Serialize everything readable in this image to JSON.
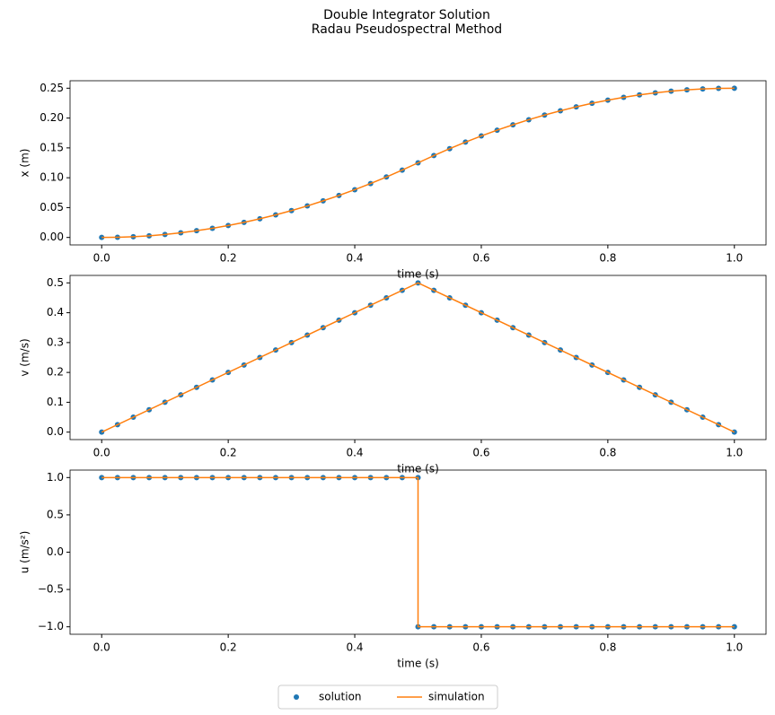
{
  "title": [
    "Double Integrator Solution",
    "Radau Pseudospectral Method"
  ],
  "legend": {
    "loc": "lower center",
    "ncol": 2
  },
  "chart_data": [
    {
      "type": "line",
      "xlabel": "time (s)",
      "ylabel": "x (m)",
      "xlim": [
        -0.05,
        1.05
      ],
      "ylim": [
        -0.0125,
        0.2625
      ],
      "xticks": [
        {
          "value": 0,
          "label": "0.0"
        },
        0.2,
        0.4,
        0.6,
        0.8,
        {
          "value": 1,
          "label": "1.0"
        }
      ],
      "yticks": [
        {
          "value": 0,
          "label": "0.00"
        },
        {
          "value": 0.05,
          "label": "0.05"
        },
        {
          "value": 0.1,
          "label": "0.10"
        },
        {
          "value": 0.15,
          "label": "0.15"
        },
        {
          "value": 0.2,
          "label": "0.20"
        },
        {
          "value": 0.25,
          "label": "0.25"
        }
      ],
      "series": [
        {
          "name": "solution",
          "color": "#1f77b4",
          "mode": "markers",
          "x": [
            0,
            0.025,
            0.05,
            0.075,
            0.1,
            0.125,
            0.15,
            0.175,
            0.2,
            0.225,
            0.25,
            0.275,
            0.3,
            0.325,
            0.35,
            0.375,
            0.4,
            0.425,
            0.45,
            0.475,
            0.5,
            0.525,
            0.55,
            0.575,
            0.6,
            0.625,
            0.65,
            0.675,
            0.7,
            0.725,
            0.75,
            0.775,
            0.8,
            0.825,
            0.85,
            0.875,
            0.9,
            0.925,
            0.95,
            0.975,
            1
          ],
          "values": [
            0,
            0.0003,
            0.0013,
            0.0028,
            0.005,
            0.0078,
            0.0113,
            0.0153,
            0.02,
            0.0253,
            0.0313,
            0.0378,
            0.045,
            0.0528,
            0.0613,
            0.0703,
            0.08,
            0.0903,
            0.1013,
            0.1128,
            0.125,
            0.1372,
            0.1487,
            0.1597,
            0.17,
            0.1797,
            0.1887,
            0.1972,
            0.205,
            0.2122,
            0.2187,
            0.2247,
            0.23,
            0.2347,
            0.2388,
            0.2422,
            0.245,
            0.2472,
            0.2487,
            0.2497,
            0.25
          ]
        },
        {
          "name": "simulation",
          "color": "#ff7f0e",
          "mode": "lines",
          "x": [
            0,
            0.025,
            0.05,
            0.075,
            0.1,
            0.125,
            0.15,
            0.175,
            0.2,
            0.225,
            0.25,
            0.275,
            0.3,
            0.325,
            0.35,
            0.375,
            0.4,
            0.425,
            0.45,
            0.475,
            0.5,
            0.525,
            0.55,
            0.575,
            0.6,
            0.625,
            0.65,
            0.675,
            0.7,
            0.725,
            0.75,
            0.775,
            0.8,
            0.825,
            0.85,
            0.875,
            0.9,
            0.925,
            0.95,
            0.975,
            1
          ],
          "values": [
            0,
            0.0003,
            0.0013,
            0.0028,
            0.005,
            0.0078,
            0.0113,
            0.0153,
            0.02,
            0.0253,
            0.0313,
            0.0378,
            0.045,
            0.0528,
            0.0613,
            0.0703,
            0.08,
            0.0903,
            0.1013,
            0.1128,
            0.125,
            0.1372,
            0.1487,
            0.1597,
            0.17,
            0.1797,
            0.1887,
            0.1972,
            0.205,
            0.2122,
            0.2187,
            0.2247,
            0.23,
            0.2347,
            0.2388,
            0.2422,
            0.245,
            0.2472,
            0.2487,
            0.2497,
            0.25
          ]
        }
      ]
    },
    {
      "type": "line",
      "xlabel": "time (s)",
      "ylabel": "v (m/s)",
      "xlim": [
        -0.05,
        1.05
      ],
      "ylim": [
        -0.025,
        0.525
      ],
      "xticks": [
        {
          "value": 0,
          "label": "0.0"
        },
        0.2,
        0.4,
        0.6,
        0.8,
        {
          "value": 1,
          "label": "1.0"
        }
      ],
      "yticks": [
        {
          "value": 0,
          "label": "0.0"
        },
        0.1,
        0.2,
        0.3,
        0.4,
        0.5
      ],
      "series": [
        {
          "color": "#1f77b4",
          "mode": "markers",
          "x": [
            0,
            0.025,
            0.05,
            0.075,
            0.1,
            0.125,
            0.15,
            0.175,
            0.2,
            0.225,
            0.25,
            0.275,
            0.3,
            0.325,
            0.35,
            0.375,
            0.4,
            0.425,
            0.45,
            0.475,
            0.5,
            0.525,
            0.55,
            0.575,
            0.6,
            0.625,
            0.65,
            0.675,
            0.7,
            0.725,
            0.75,
            0.775,
            0.8,
            0.825,
            0.85,
            0.875,
            0.9,
            0.925,
            0.95,
            0.975,
            1
          ],
          "values": [
            0,
            0.025,
            0.05,
            0.075,
            0.1,
            0.125,
            0.15,
            0.175,
            0.2,
            0.225,
            0.25,
            0.275,
            0.3,
            0.325,
            0.35,
            0.375,
            0.4,
            0.425,
            0.45,
            0.475,
            0.5,
            0.475,
            0.45,
            0.425,
            0.4,
            0.375,
            0.35,
            0.325,
            0.3,
            0.275,
            0.25,
            0.225,
            0.2,
            0.175,
            0.15,
            0.125,
            0.1,
            0.075,
            0.05,
            0.025,
            0
          ]
        },
        {
          "color": "#ff7f0e",
          "mode": "lines",
          "x": [
            0,
            0.5,
            1
          ],
          "values": [
            0,
            0.5,
            0
          ]
        }
      ]
    },
    {
      "type": "line",
      "xlabel": "time (s)",
      "ylabel": "u (m/s²)",
      "xlim": [
        -0.05,
        1.05
      ],
      "ylim": [
        -1.1,
        1.1
      ],
      "xticks": [
        {
          "value": 0,
          "label": "0.0"
        },
        0.2,
        0.4,
        0.6,
        0.8,
        {
          "value": 1,
          "label": "1.0"
        }
      ],
      "yticks": [
        {
          "value": -1,
          "label": "−1.0"
        },
        {
          "value": -0.5,
          "label": "−0.5"
        },
        {
          "value": 0,
          "label": "0.0"
        },
        0.5,
        {
          "value": 1,
          "label": "1.0"
        }
      ],
      "series": [
        {
          "color": "#1f77b4",
          "mode": "markers",
          "x": [
            0,
            0.025,
            0.05,
            0.075,
            0.1,
            0.125,
            0.15,
            0.175,
            0.2,
            0.225,
            0.25,
            0.275,
            0.3,
            0.325,
            0.35,
            0.375,
            0.4,
            0.425,
            0.45,
            0.475,
            0.5,
            0.5,
            0.525,
            0.55,
            0.575,
            0.6,
            0.625,
            0.65,
            0.675,
            0.7,
            0.725,
            0.75,
            0.775,
            0.8,
            0.825,
            0.85,
            0.875,
            0.9,
            0.925,
            0.95,
            0.975,
            1
          ],
          "values": [
            1,
            1,
            1,
            1,
            1,
            1,
            1,
            1,
            1,
            1,
            1,
            1,
            1,
            1,
            1,
            1,
            1,
            1,
            1,
            1,
            1,
            -1,
            -1,
            -1,
            -1,
            -1,
            -1,
            -1,
            -1,
            -1,
            -1,
            -1,
            -1,
            -1,
            -1,
            -1,
            -1,
            -1,
            -1,
            -1,
            -1,
            -1
          ]
        },
        {
          "color": "#ff7f0e",
          "mode": "lines",
          "x": [
            0,
            0.5,
            0.5,
            1
          ],
          "values": [
            1,
            1,
            -1,
            -1
          ]
        }
      ]
    }
  ]
}
